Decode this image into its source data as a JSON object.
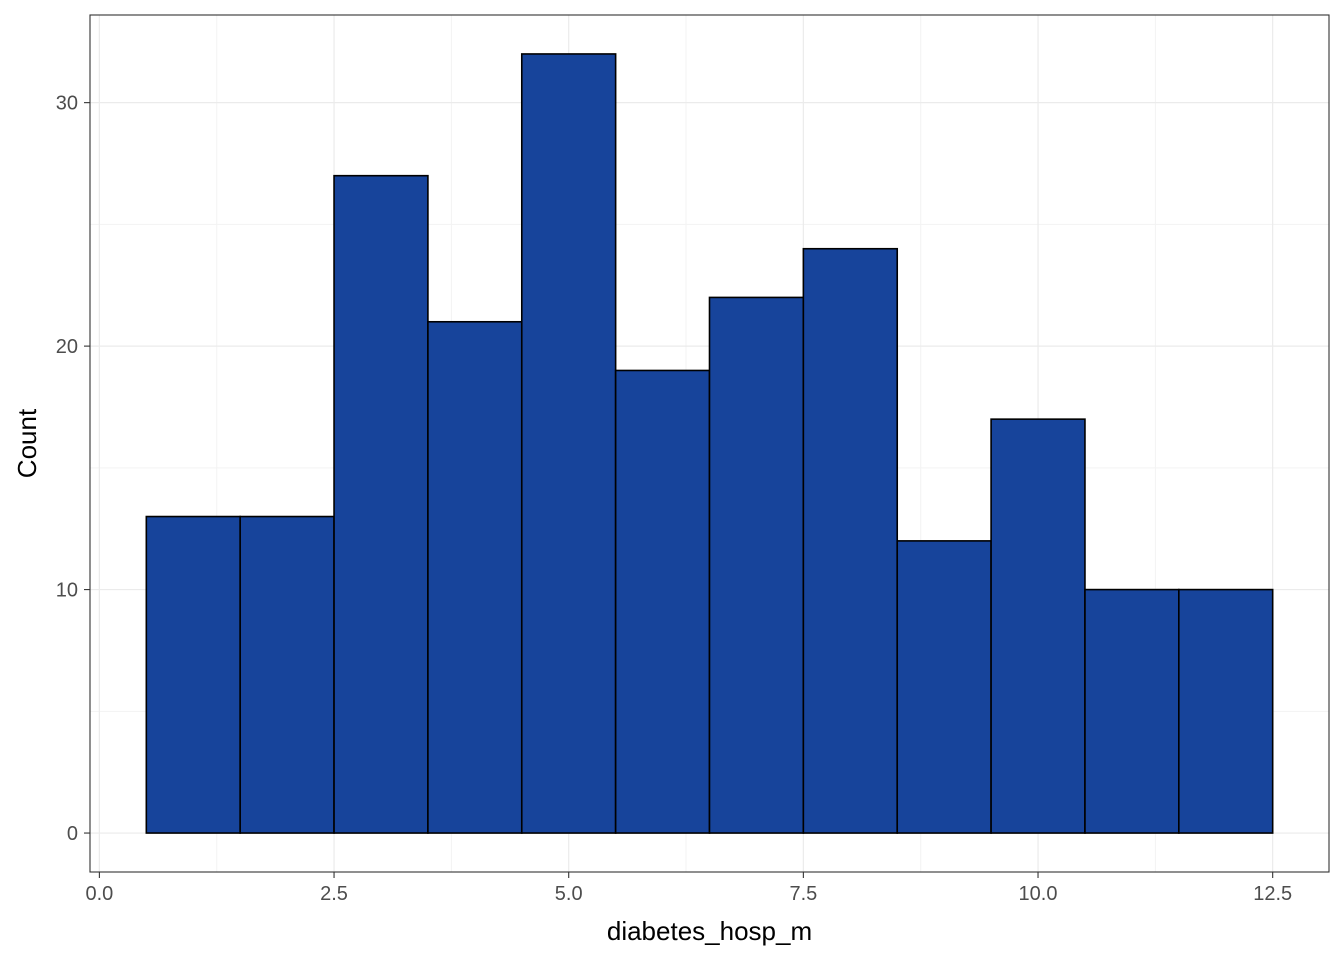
{
  "colors": {
    "bar_fill": "#17449b",
    "bar_stroke": "#000000",
    "grid_major": "#ebebeb",
    "grid_minor": "#f3f3f3",
    "panel_border": "#333333",
    "tick_text": "#4d4d4d"
  },
  "chart_data": {
    "type": "bar",
    "subtype": "histogram",
    "title": "",
    "xlabel": "diabetes_hosp_m",
    "ylabel": "Count",
    "bin_width": 1,
    "bins": [
      {
        "x0": 0.5,
        "x1": 1.5,
        "count": 13
      },
      {
        "x0": 1.5,
        "x1": 2.5,
        "count": 13
      },
      {
        "x0": 2.5,
        "x1": 3.5,
        "count": 27
      },
      {
        "x0": 3.5,
        "x1": 4.5,
        "count": 21
      },
      {
        "x0": 4.5,
        "x1": 5.5,
        "count": 32
      },
      {
        "x0": 5.5,
        "x1": 6.5,
        "count": 19
      },
      {
        "x0": 6.5,
        "x1": 7.5,
        "count": 22
      },
      {
        "x0": 7.5,
        "x1": 8.5,
        "count": 24
      },
      {
        "x0": 8.5,
        "x1": 9.5,
        "count": 12
      },
      {
        "x0": 9.5,
        "x1": 10.5,
        "count": 17
      },
      {
        "x0": 10.5,
        "x1": 11.5,
        "count": 10
      },
      {
        "x0": 11.5,
        "x1": 12.5,
        "count": 10
      }
    ],
    "xlim": [
      -0.1,
      13.1
    ],
    "ylim": [
      -1.6,
      33.6
    ],
    "x_ticks": [
      0.0,
      2.5,
      5.0,
      7.5,
      10.0,
      12.5
    ],
    "x_tick_labels": [
      "0.0",
      "2.5",
      "5.0",
      "7.5",
      "10.0",
      "12.5"
    ],
    "x_minor_ticks": [
      1.25,
      3.75,
      6.25,
      8.75,
      11.25
    ],
    "y_ticks": [
      0,
      10,
      20,
      30
    ],
    "y_tick_labels": [
      "0",
      "10",
      "20",
      "30"
    ],
    "y_minor_ticks": [
      5,
      15,
      25
    ],
    "grid": true,
    "legend": "none"
  }
}
